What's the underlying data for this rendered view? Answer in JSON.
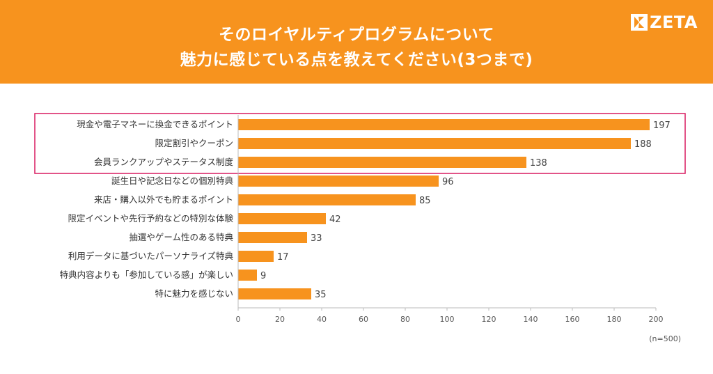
{
  "header": {
    "title_line1": "そのロイヤルティプログラムについて",
    "title_line2": "魅力に感じている点を教えてください(3つまで)",
    "logo_text": "ZETA",
    "background_color": "#F7931E"
  },
  "chart_data": {
    "type": "bar",
    "orientation": "horizontal",
    "categories": [
      "現金や電子マネーに換金できるポイント",
      "限定割引やクーポン",
      "会員ランクアップやステータス制度",
      "誕生日や記念日などの個別特典",
      "来店・購入以外でも貯まるポイント",
      "限定イベントや先行予約などの特別な体験",
      "抽選やゲーム性のある特典",
      "利用データに基づいたパーソナライズ特典",
      "特典内容よりも「参加している感」が楽しい",
      "特に魅力を感じない"
    ],
    "values": [
      197,
      188,
      138,
      96,
      85,
      42,
      33,
      17,
      9,
      35
    ],
    "xlim": [
      0,
      200
    ],
    "xticks": [
      0,
      20,
      40,
      60,
      80,
      100,
      120,
      140,
      160,
      180,
      200
    ],
    "bar_color": "#F7931E",
    "highlight_color": "#D81B60",
    "highlighted_rows": [
      0,
      1,
      2
    ],
    "grid": false
  },
  "note": "(n=500)"
}
